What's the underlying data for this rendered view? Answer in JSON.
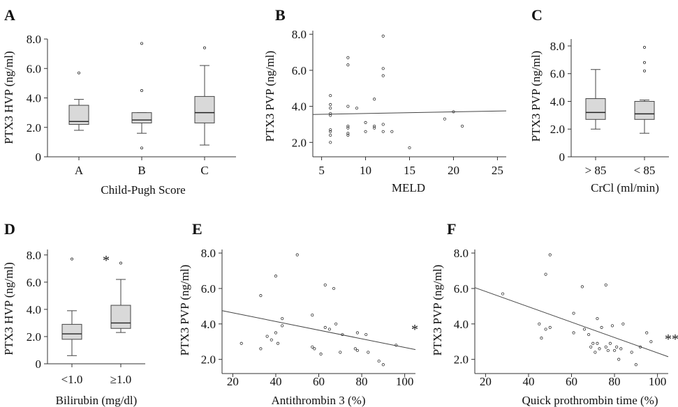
{
  "chart_data": [
    {
      "panel": "A",
      "type": "box",
      "ylabel": "PTX3 HVP (ng/ml)",
      "xlabel": "Child-Pugh Score",
      "ylim": [
        0,
        8
      ],
      "yticks": [
        "0",
        "2.0",
        "4.0",
        "6.0",
        "8.0"
      ],
      "categories": [
        "A",
        "B",
        "C"
      ],
      "boxes": [
        {
          "min": 1.8,
          "q1": 2.2,
          "median": 2.4,
          "q3": 3.5,
          "max": 3.9,
          "outliers": [
            5.7
          ]
        },
        {
          "min": 1.6,
          "q1": 2.3,
          "median": 2.5,
          "q3": 3.0,
          "max": 3.0,
          "outliers": [
            7.7,
            4.5,
            0.6
          ]
        },
        {
          "min": 0.8,
          "q1": 2.3,
          "median": 3.0,
          "q3": 4.1,
          "max": 6.2,
          "outliers": [
            7.4
          ]
        }
      ],
      "significance": ""
    },
    {
      "panel": "B",
      "type": "scatter",
      "ylabel": "PTX3 PVP (ng/ml)",
      "xlabel": "MELD",
      "xlim": [
        4,
        26
      ],
      "ylim": [
        1.2,
        8.2
      ],
      "xticks": [
        "5",
        "10",
        "15",
        "20",
        "25"
      ],
      "yticks": [
        "2.0",
        "4.0",
        "6.0",
        "8.0"
      ],
      "points": [
        [
          6,
          4.6
        ],
        [
          6,
          4.1
        ],
        [
          6,
          3.9
        ],
        [
          6,
          3.6
        ],
        [
          6,
          3.5
        ],
        [
          6,
          2.7
        ],
        [
          6,
          2.6
        ],
        [
          6,
          2.4
        ],
        [
          6,
          2.0
        ],
        [
          8,
          6.7
        ],
        [
          8,
          6.3
        ],
        [
          8,
          4.0
        ],
        [
          8,
          2.9
        ],
        [
          8,
          2.8
        ],
        [
          8,
          2.5
        ],
        [
          8,
          2.4
        ],
        [
          9,
          3.9
        ],
        [
          10,
          3.1
        ],
        [
          10,
          2.6
        ],
        [
          11,
          4.4
        ],
        [
          11,
          2.9
        ],
        [
          11,
          2.8
        ],
        [
          12,
          7.9
        ],
        [
          12,
          6.1
        ],
        [
          12,
          5.7
        ],
        [
          12,
          3.0
        ],
        [
          12,
          2.6
        ],
        [
          13,
          2.6
        ],
        [
          15,
          1.7
        ],
        [
          19,
          3.3
        ],
        [
          20,
          3.7
        ],
        [
          21,
          2.9
        ]
      ],
      "fit": [
        [
          4,
          3.55
        ],
        [
          26,
          3.75
        ]
      ],
      "significance": ""
    },
    {
      "panel": "C",
      "type": "box",
      "ylabel": "PTX3 PVP (ng/ml)",
      "xlabel": "CrCl (ml/min)",
      "ylim": [
        0,
        8.5
      ],
      "yticks": [
        "0",
        "2.0",
        "4.0",
        "6.0",
        "8.0"
      ],
      "categories": [
        "> 85",
        "< 85"
      ],
      "boxes": [
        {
          "min": 2.0,
          "q1": 2.7,
          "median": 3.2,
          "q3": 4.2,
          "max": 6.3,
          "outliers": []
        },
        {
          "min": 1.7,
          "q1": 2.7,
          "median": 3.1,
          "q3": 4.0,
          "max": 4.1,
          "outliers": [
            7.9,
            6.8,
            6.2
          ]
        }
      ],
      "significance": ""
    },
    {
      "panel": "D",
      "type": "box",
      "ylabel": "PTX3 HVP (ng/ml)",
      "xlabel": "Bilirubin (mg/dl)",
      "ylim": [
        0,
        8.4
      ],
      "yticks": [
        "0",
        "2.0",
        "4.0",
        "6.0",
        "8.0"
      ],
      "categories": [
        "<1.0",
        "≥1.0"
      ],
      "boxes": [
        {
          "min": 0.6,
          "q1": 1.8,
          "median": 2.2,
          "q3": 2.9,
          "max": 3.9,
          "outliers": [
            7.7
          ]
        },
        {
          "min": 2.3,
          "q1": 2.6,
          "median": 3.0,
          "q3": 4.3,
          "max": 6.2,
          "outliers": [
            7.4
          ]
        }
      ],
      "significance": "*"
    },
    {
      "panel": "E",
      "type": "scatter",
      "ylabel": "PTX3 PVP (ng/ml)",
      "xlabel": "Antithrombin 3 (%)",
      "xlim": [
        15,
        105
      ],
      "ylim": [
        1.2,
        8.2
      ],
      "xticks": [
        "20",
        "40",
        "60",
        "80",
        "100"
      ],
      "yticks": [
        "2.0",
        "4.0",
        "6.0",
        "8.0"
      ],
      "points": [
        [
          24,
          2.9
        ],
        [
          33,
          5.6
        ],
        [
          33,
          2.6
        ],
        [
          36,
          3.3
        ],
        [
          38,
          3.1
        ],
        [
          40,
          6.7
        ],
        [
          40,
          3.5
        ],
        [
          41,
          2.9
        ],
        [
          43,
          4.3
        ],
        [
          43,
          3.9
        ],
        [
          50,
          7.9
        ],
        [
          57,
          4.5
        ],
        [
          57,
          2.7
        ],
        [
          58,
          2.6
        ],
        [
          61,
          2.3
        ],
        [
          63,
          6.2
        ],
        [
          63,
          3.8
        ],
        [
          65,
          3.7
        ],
        [
          67,
          6.0
        ],
        [
          68,
          4.0
        ],
        [
          70,
          2.4
        ],
        [
          71,
          3.4
        ],
        [
          77,
          2.6
        ],
        [
          78,
          2.5
        ],
        [
          78,
          3.5
        ],
        [
          82,
          3.4
        ],
        [
          83,
          2.4
        ],
        [
          88,
          1.9
        ],
        [
          90,
          1.7
        ],
        [
          96,
          2.8
        ]
      ],
      "fit": [
        [
          15,
          4.75
        ],
        [
          105,
          2.55
        ]
      ],
      "significance": "*"
    },
    {
      "panel": "F",
      "type": "scatter",
      "ylabel": "PTX3 PVP (ng/ml)",
      "xlabel": "Quick prothrombin time (%)",
      "xlim": [
        15,
        105
      ],
      "ylim": [
        1.2,
        8.2
      ],
      "xticks": [
        "20",
        "40",
        "60",
        "80",
        "100"
      ],
      "yticks": [
        "2.0",
        "4.0",
        "6.0",
        "8.0"
      ],
      "points": [
        [
          28,
          5.7
        ],
        [
          45,
          4.0
        ],
        [
          46,
          3.2
        ],
        [
          48,
          6.8
        ],
        [
          48,
          3.7
        ],
        [
          50,
          7.9
        ],
        [
          50,
          3.8
        ],
        [
          61,
          4.6
        ],
        [
          61,
          3.5
        ],
        [
          65,
          6.1
        ],
        [
          66,
          3.7
        ],
        [
          68,
          3.4
        ],
        [
          69,
          2.7
        ],
        [
          70,
          2.9
        ],
        [
          71,
          2.4
        ],
        [
          72,
          4.3
        ],
        [
          72,
          2.9
        ],
        [
          73,
          2.6
        ],
        [
          74,
          3.8
        ],
        [
          76,
          6.2
        ],
        [
          76,
          2.7
        ],
        [
          77,
          2.5
        ],
        [
          78,
          2.9
        ],
        [
          79,
          3.9
        ],
        [
          80,
          2.5
        ],
        [
          81,
          2.7
        ],
        [
          82,
          2.0
        ],
        [
          83,
          2.6
        ],
        [
          84,
          4.0
        ],
        [
          88,
          2.4
        ],
        [
          90,
          1.7
        ],
        [
          92,
          2.7
        ],
        [
          95,
          3.5
        ],
        [
          97,
          3.0
        ]
      ],
      "fit": [
        [
          15,
          6.05
        ],
        [
          105,
          2.15
        ]
      ],
      "significance": "**"
    }
  ]
}
